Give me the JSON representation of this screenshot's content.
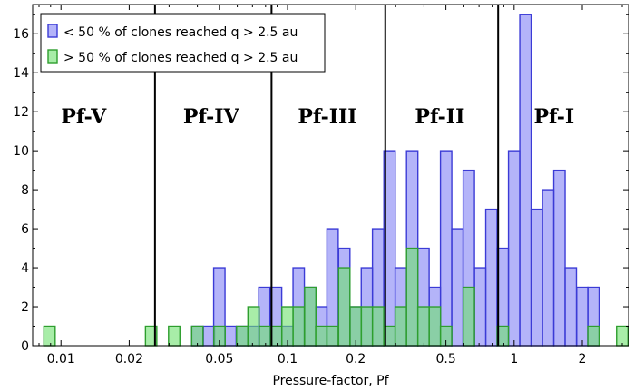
{
  "chart_data": {
    "type": "bar",
    "title": "",
    "xlabel": "Pressure-factor, Pf",
    "ylabel": "",
    "xscale": "log",
    "xlim": [
      0.0075,
      3.2
    ],
    "ylim": [
      0,
      17.5
    ],
    "bin_log_width": 0.05,
    "x_ticks": [
      {
        "value": 0.01,
        "label": "0.01"
      },
      {
        "value": 0.02,
        "label": "0.02"
      },
      {
        "value": 0.05,
        "label": "0.05"
      },
      {
        "value": 0.1,
        "label": "0.1"
      },
      {
        "value": 0.2,
        "label": "0.2"
      },
      {
        "value": 0.5,
        "label": "0.5"
      },
      {
        "value": 1,
        "label": "1"
      },
      {
        "value": 2,
        "label": "2"
      }
    ],
    "y_ticks": [
      {
        "value": 0,
        "label": "0"
      },
      {
        "value": 2,
        "label": "2"
      },
      {
        "value": 4,
        "label": "4"
      },
      {
        "value": 6,
        "label": "6"
      },
      {
        "value": 8,
        "label": "8"
      },
      {
        "value": 10,
        "label": "10"
      },
      {
        "value": 12,
        "label": "12"
      },
      {
        "value": 14,
        "label": "14"
      },
      {
        "value": 16,
        "label": "16"
      }
    ],
    "boundaries": [
      0.026,
      0.085,
      0.27,
      0.85
    ],
    "regions": [
      {
        "label": "Pf-V",
        "center": 0.0126
      },
      {
        "label": "Pf-IV",
        "center": 0.046
      },
      {
        "label": "Pf-III",
        "center": 0.15
      },
      {
        "label": "Pf-II",
        "center": 0.47
      },
      {
        "label": "Pf-I",
        "center": 1.5
      }
    ],
    "series": [
      {
        "name": "< 50 % of clones reached q > 2.5 au",
        "color": "#8080ff",
        "fill": "rgba(130,130,245,0.6)",
        "edge": "#3b3bd6",
        "bins": [
          {
            "x": 0.04,
            "value": 1
          },
          {
            "x": 0.045,
            "value": 1
          },
          {
            "x": 0.05,
            "value": 4
          },
          {
            "x": 0.056,
            "value": 1
          },
          {
            "x": 0.063,
            "value": 1
          },
          {
            "x": 0.071,
            "value": 1
          },
          {
            "x": 0.079,
            "value": 3
          },
          {
            "x": 0.089,
            "value": 3
          },
          {
            "x": 0.1,
            "value": 1
          },
          {
            "x": 0.112,
            "value": 4
          },
          {
            "x": 0.126,
            "value": 3
          },
          {
            "x": 0.141,
            "value": 2
          },
          {
            "x": 0.158,
            "value": 6
          },
          {
            "x": 0.178,
            "value": 5
          },
          {
            "x": 0.2,
            "value": 2
          },
          {
            "x": 0.224,
            "value": 4
          },
          {
            "x": 0.251,
            "value": 6
          },
          {
            "x": 0.282,
            "value": 10
          },
          {
            "x": 0.316,
            "value": 4
          },
          {
            "x": 0.355,
            "value": 10
          },
          {
            "x": 0.398,
            "value": 5
          },
          {
            "x": 0.447,
            "value": 3
          },
          {
            "x": 0.501,
            "value": 10
          },
          {
            "x": 0.562,
            "value": 6
          },
          {
            "x": 0.631,
            "value": 9
          },
          {
            "x": 0.708,
            "value": 4
          },
          {
            "x": 0.794,
            "value": 7
          },
          {
            "x": 0.891,
            "value": 5
          },
          {
            "x": 1.0,
            "value": 10
          },
          {
            "x": 1.122,
            "value": 17
          },
          {
            "x": 1.259,
            "value": 7
          },
          {
            "x": 1.413,
            "value": 8
          },
          {
            "x": 1.585,
            "value": 9
          },
          {
            "x": 1.778,
            "value": 4
          },
          {
            "x": 2.0,
            "value": 3
          },
          {
            "x": 2.239,
            "value": 3
          }
        ]
      },
      {
        "name": "> 50 % of clones reached q > 2.5 au",
        "color": "#80ff80",
        "fill": "rgba(110,225,110,0.6)",
        "edge": "#2e9e2e",
        "bins": [
          {
            "x": 0.0089,
            "value": 1
          },
          {
            "x": 0.025,
            "value": 1
          },
          {
            "x": 0.0316,
            "value": 1
          },
          {
            "x": 0.04,
            "value": 1
          },
          {
            "x": 0.0501,
            "value": 1
          },
          {
            "x": 0.0631,
            "value": 1
          },
          {
            "x": 0.0708,
            "value": 2
          },
          {
            "x": 0.0794,
            "value": 1
          },
          {
            "x": 0.0891,
            "value": 1
          },
          {
            "x": 0.1,
            "value": 2
          },
          {
            "x": 0.112,
            "value": 2
          },
          {
            "x": 0.126,
            "value": 3
          },
          {
            "x": 0.141,
            "value": 1
          },
          {
            "x": 0.158,
            "value": 1
          },
          {
            "x": 0.178,
            "value": 4
          },
          {
            "x": 0.2,
            "value": 2
          },
          {
            "x": 0.224,
            "value": 2
          },
          {
            "x": 0.251,
            "value": 2
          },
          {
            "x": 0.282,
            "value": 1
          },
          {
            "x": 0.316,
            "value": 2
          },
          {
            "x": 0.355,
            "value": 5
          },
          {
            "x": 0.398,
            "value": 2
          },
          {
            "x": 0.447,
            "value": 2
          },
          {
            "x": 0.501,
            "value": 1
          },
          {
            "x": 0.631,
            "value": 3
          },
          {
            "x": 0.891,
            "value": 1
          },
          {
            "x": 2.239,
            "value": 1
          },
          {
            "x": 3.0,
            "value": 1
          }
        ]
      }
    ]
  }
}
